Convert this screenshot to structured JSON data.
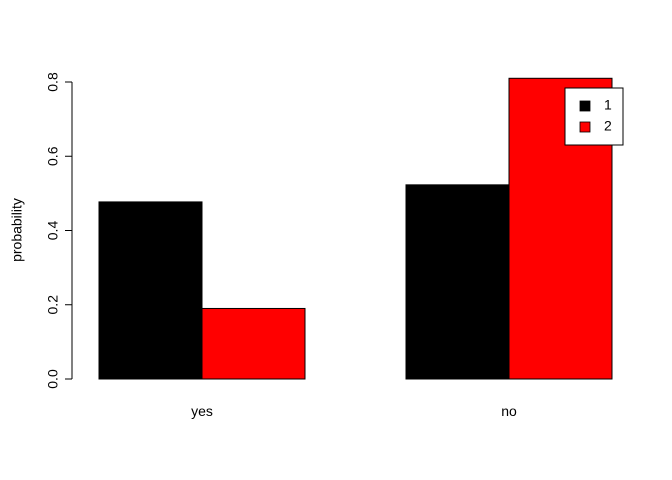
{
  "chart_data": {
    "type": "bar",
    "mode": "grouped",
    "categories": [
      "yes",
      "no"
    ],
    "series": [
      {
        "name": "1",
        "color": "#000000",
        "values": [
          0.477,
          0.523
        ]
      },
      {
        "name": "2",
        "color": "#ff0000",
        "values": [
          0.19,
          0.81
        ]
      }
    ],
    "title": "",
    "xlabel": "",
    "ylabel": "probability",
    "ylim": [
      0,
      0.8
    ],
    "yticks": [
      0.0,
      0.2,
      0.4,
      0.6,
      0.8
    ],
    "ytick_labels": [
      "0.0",
      "0.2",
      "0.4",
      "0.6",
      "0.8"
    ],
    "grid": false,
    "legend": {
      "position": "top-right",
      "entries": [
        "1",
        "2"
      ]
    }
  }
}
